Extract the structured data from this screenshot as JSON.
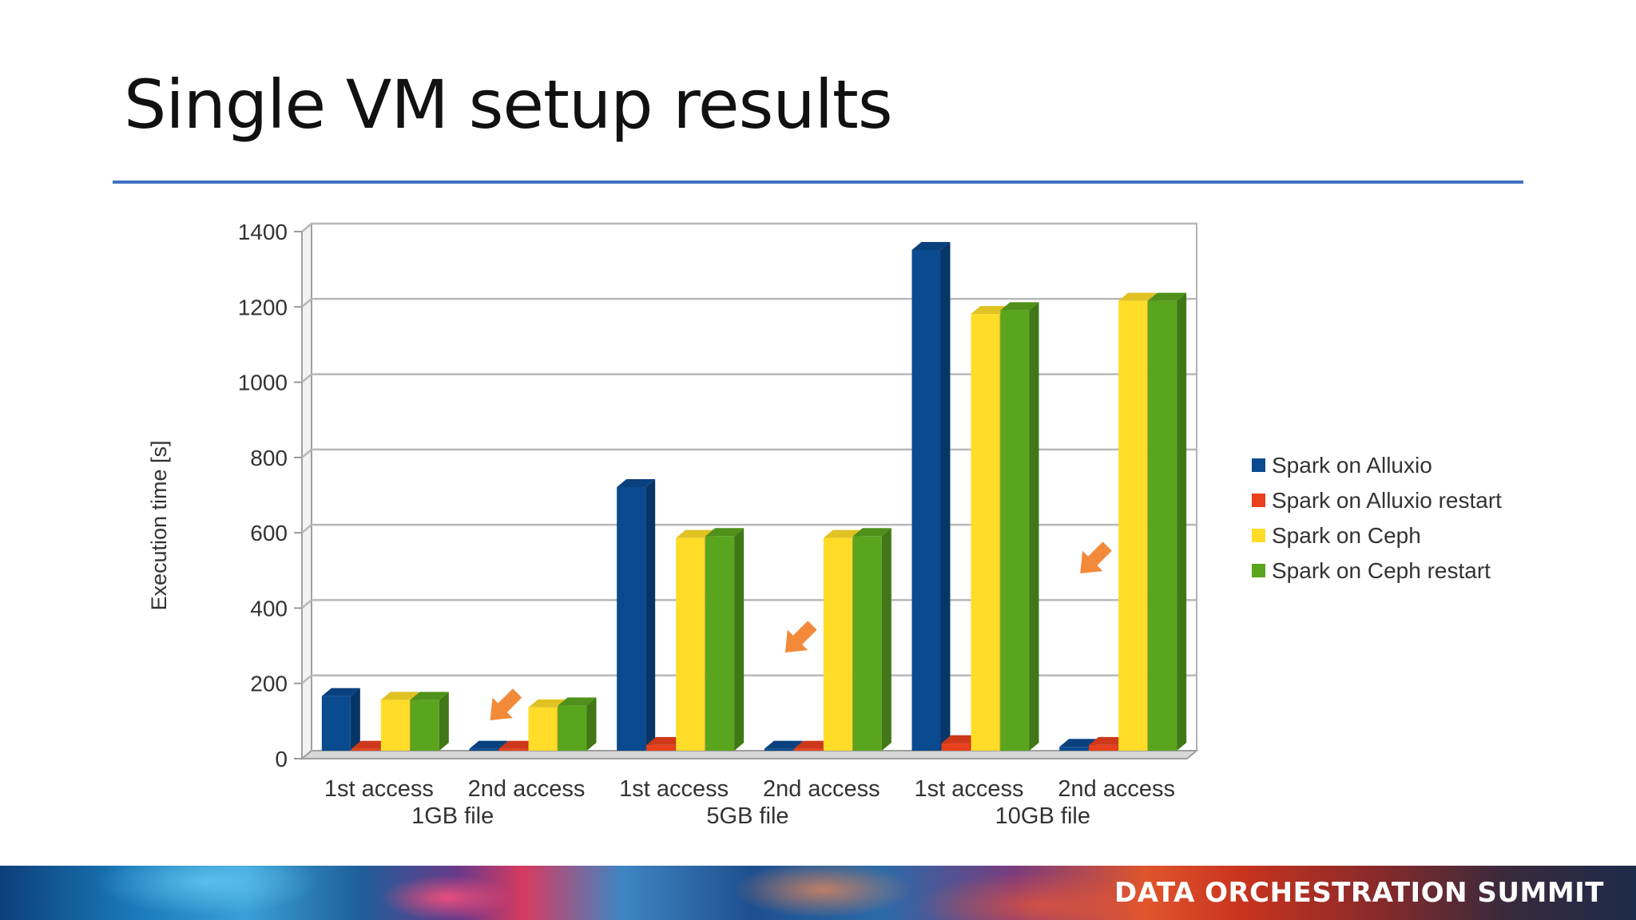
{
  "slide": {
    "title": "Single VM setup results",
    "footer": "DATA ORCHESTRATION SUMMIT"
  },
  "chart_data": {
    "type": "bar",
    "ylabel": "Execution time [s]",
    "ylim": [
      0,
      1400
    ],
    "yticks": [
      0,
      200,
      400,
      600,
      800,
      1000,
      1200,
      1400
    ],
    "categories": [
      "1st access",
      "2nd access",
      "1st access",
      "2nd access",
      "1st access",
      "2nd access"
    ],
    "groups": [
      {
        "label": "1GB file",
        "span": [
          0,
          1
        ]
      },
      {
        "label": "5GB file",
        "span": [
          2,
          3
        ]
      },
      {
        "label": "10GB file",
        "span": [
          4,
          5
        ]
      }
    ],
    "grid": true,
    "legend_position": "right",
    "series": [
      {
        "name": "Spark on Alluxio",
        "color": "#0a4a8f",
        "values": [
          145,
          5,
          700,
          5,
          1330,
          10
        ]
      },
      {
        "name": "Spark on Alluxio restart",
        "color": "#e8401c",
        "values": [
          5,
          5,
          15,
          5,
          20,
          15
        ]
      },
      {
        "name": "Spark on Ceph",
        "color": "#ffdc28",
        "values": [
          135,
          115,
          565,
          565,
          1160,
          1195
        ]
      },
      {
        "name": "Spark on Ceph restart",
        "color": "#5aa51e",
        "values": [
          135,
          120,
          570,
          570,
          1170,
          1195
        ]
      }
    ],
    "annotations": [
      {
        "type": "arrow-icon",
        "color": "#f28a3a",
        "category_index": 1,
        "value": 120
      },
      {
        "type": "arrow-icon",
        "color": "#f28a3a",
        "category_index": 3,
        "value": 300
      },
      {
        "type": "arrow-icon",
        "color": "#f28a3a",
        "category_index": 5,
        "value": 510
      }
    ]
  }
}
